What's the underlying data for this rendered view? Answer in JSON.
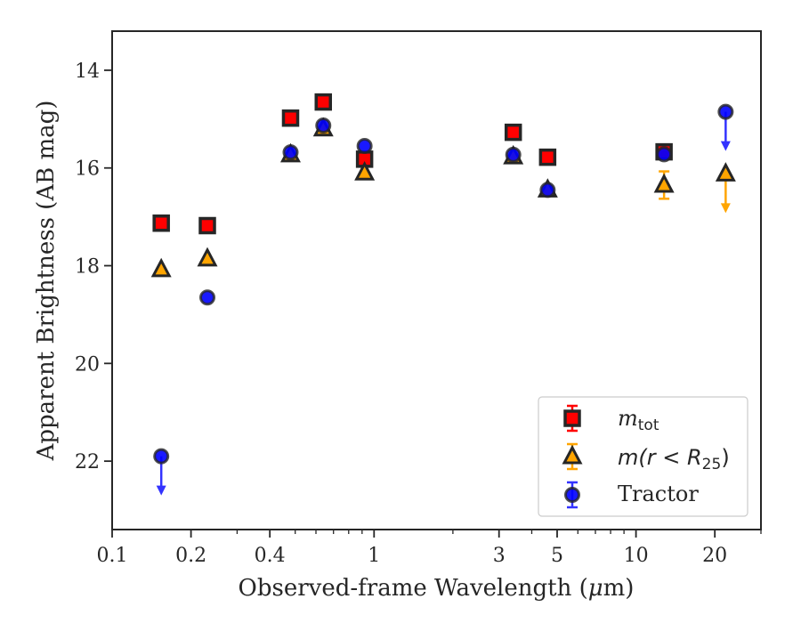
{
  "chart_data": {
    "type": "scatter",
    "xlabel_main": "Observed-frame Wavelength (",
    "xlabel_mu": "μ",
    "xlabel_end": "m)",
    "ylabel": "Apparent Brightness (AB mag)",
    "xscale": "log",
    "xlim": [
      0.1,
      30
    ],
    "ylim": [
      23.4,
      13.2
    ],
    "y_inverted": true,
    "grid": false,
    "legend_position": "lower-right",
    "x_ticks": [
      {
        "value": 0.1,
        "label": "0.1"
      },
      {
        "value": 0.2,
        "label": "0.2"
      },
      {
        "value": 0.4,
        "label": "0.4"
      },
      {
        "value": 1,
        "label": "1"
      },
      {
        "value": 3,
        "label": "3"
      },
      {
        "value": 5,
        "label": "5"
      },
      {
        "value": 10,
        "label": "10"
      },
      {
        "value": 20,
        "label": "20"
      }
    ],
    "y_ticks": [
      {
        "value": 14,
        "label": "14"
      },
      {
        "value": 16,
        "label": "16"
      },
      {
        "value": 18,
        "label": "18"
      },
      {
        "value": 20,
        "label": "20"
      },
      {
        "value": 22,
        "label": "22"
      }
    ],
    "series": [
      {
        "key": "mtot",
        "legend_main": "m",
        "legend_sub": "tot",
        "marker": "square",
        "color": "#ff0000",
        "edge": "#262626",
        "error_color": "#ff0000",
        "points": [
          {
            "x": 0.154,
            "y": 17.13
          },
          {
            "x": 0.231,
            "y": 17.18
          },
          {
            "x": 0.48,
            "y": 14.98
          },
          {
            "x": 0.64,
            "y": 14.65
          },
          {
            "x": 0.92,
            "y": 15.82
          },
          {
            "x": 3.4,
            "y": 15.27
          },
          {
            "x": 4.6,
            "y": 15.78
          },
          {
            "x": 12.8,
            "y": 15.67
          }
        ]
      },
      {
        "key": "mr25",
        "legend_main": "m",
        "legend_open": "(r < R",
        "legend_sub": "25",
        "legend_close": ")",
        "marker": "triangle",
        "color": "#ffa500",
        "edge": "#262626",
        "error_color": "#ffa500",
        "points": [
          {
            "x": 0.154,
            "y": 18.08
          },
          {
            "x": 0.231,
            "y": 17.86
          },
          {
            "x": 0.48,
            "y": 15.73
          },
          {
            "x": 0.64,
            "y": 15.2
          },
          {
            "x": 0.92,
            "y": 16.1
          },
          {
            "x": 3.4,
            "y": 15.77
          },
          {
            "x": 4.6,
            "y": 16.45
          },
          {
            "x": 12.8,
            "y": 16.35,
            "err": 0.28
          },
          {
            "x": 22.0,
            "y": 16.12,
            "upper_limit": true
          }
        ]
      },
      {
        "key": "tractor",
        "legend_main": "Tractor",
        "marker": "circle",
        "color": "#0000ff",
        "edge": "#262626",
        "error_color": "#3333ff",
        "points": [
          {
            "x": 0.154,
            "y": 21.9,
            "upper_limit": true
          },
          {
            "x": 0.231,
            "y": 18.65
          },
          {
            "x": 0.48,
            "y": 15.68
          },
          {
            "x": 0.64,
            "y": 15.13
          },
          {
            "x": 0.92,
            "y": 15.55
          },
          {
            "x": 3.4,
            "y": 15.73
          },
          {
            "x": 4.6,
            "y": 16.45
          },
          {
            "x": 12.8,
            "y": 15.72
          },
          {
            "x": 22.0,
            "y": 14.85,
            "upper_limit": true
          }
        ]
      }
    ]
  }
}
